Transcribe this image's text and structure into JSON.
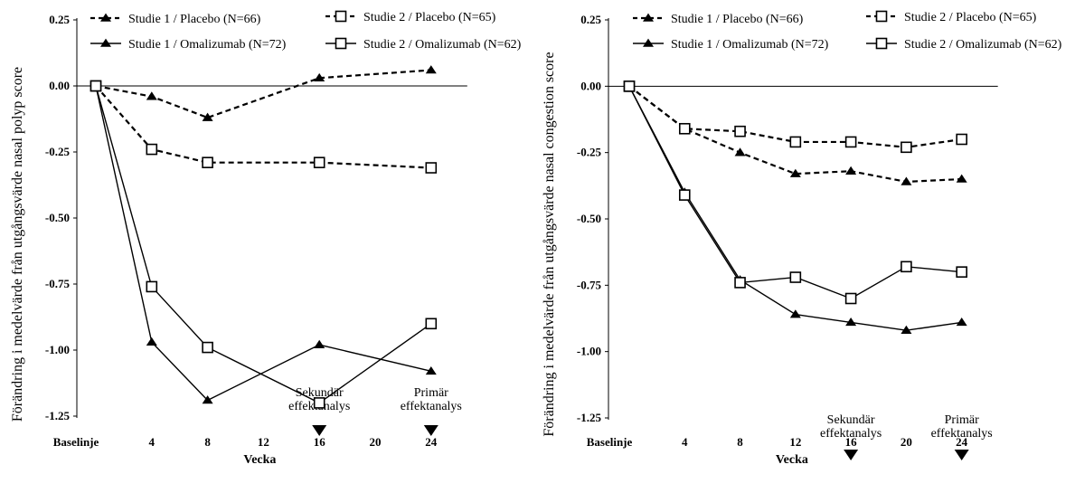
{
  "chart_data": [
    {
      "type": "line",
      "ylabel": "Förändring i medelvärde från utgångsvärde nasal polyp score",
      "xlabel": "Vecka",
      "x_tick_labels": [
        "Baselinje",
        "4",
        "8",
        "12",
        "16",
        "20",
        "24"
      ],
      "x_ticks": [
        0,
        4,
        8,
        12,
        16,
        20,
        24
      ],
      "y_ticks": [
        "0.25",
        "0.00",
        "-0.25",
        "-0.50",
        "-0.75",
        "-1.00",
        "-1.25"
      ],
      "ylim": [
        -1.25,
        0.25
      ],
      "grid": false,
      "legend_position": "top",
      "annotations": [
        {
          "x": 16,
          "lines": [
            "Sekundär",
            "effektanalys"
          ]
        },
        {
          "x": 24,
          "lines": [
            "Primär",
            "effektanalys"
          ]
        }
      ],
      "series": [
        {
          "name": "Studie 1 / Placebo (N=66)",
          "marker": "triangle",
          "style": "dashed",
          "x": [
            0,
            4,
            8,
            16,
            24
          ],
          "values": [
            0.0,
            -0.04,
            -0.12,
            0.03,
            0.06
          ]
        },
        {
          "name": "Studie 2 / Placebo (N=65)",
          "marker": "square",
          "style": "dashed",
          "x": [
            0,
            4,
            8,
            16,
            24
          ],
          "values": [
            0.0,
            -0.24,
            -0.29,
            -0.29,
            -0.31
          ]
        },
        {
          "name": "Studie 1 / Omalizumab (N=72)",
          "marker": "triangle",
          "style": "solid",
          "x": [
            0,
            4,
            8,
            16,
            24
          ],
          "values": [
            0.0,
            -0.97,
            -1.19,
            -0.98,
            -1.08
          ]
        },
        {
          "name": "Studie 2 / Omalizumab (N=62)",
          "marker": "square",
          "style": "solid",
          "x": [
            0,
            4,
            8,
            16,
            24
          ],
          "values": [
            0.0,
            -0.76,
            -0.99,
            -1.2,
            -0.9
          ]
        }
      ]
    },
    {
      "type": "line",
      "ylabel": "Förändring i medelvärde från utgångsvärde nasal congestion score",
      "xlabel": "Vecka",
      "x_tick_labels": [
        "Baselinje",
        "4",
        "8",
        "12",
        "16",
        "20",
        "24"
      ],
      "x_ticks": [
        0,
        4,
        8,
        12,
        16,
        20,
        24
      ],
      "y_ticks": [
        "0.25",
        "0.00",
        "-0.25",
        "-0.50",
        "-0.75",
        "-1.00",
        "-1.25"
      ],
      "ylim": [
        -1.25,
        0.25
      ],
      "grid": false,
      "legend_position": "top",
      "annotations": [
        {
          "x": 16,
          "lines": [
            "Sekundär",
            "effektanalys"
          ]
        },
        {
          "x": 24,
          "lines": [
            "Primär",
            "effektanalys"
          ]
        }
      ],
      "series": [
        {
          "name": "Studie 1 / Placebo (N=66)",
          "marker": "triangle",
          "style": "dashed",
          "x": [
            0,
            4,
            8,
            12,
            16,
            20,
            24
          ],
          "values": [
            0.0,
            -0.16,
            -0.25,
            -0.33,
            -0.32,
            -0.36,
            -0.35
          ]
        },
        {
          "name": "Studie 2 / Placebo (N=65)",
          "marker": "square",
          "style": "dashed",
          "x": [
            0,
            4,
            8,
            12,
            16,
            20,
            24
          ],
          "values": [
            0.0,
            -0.16,
            -0.17,
            -0.21,
            -0.21,
            -0.23,
            -0.2
          ]
        },
        {
          "name": "Studie 1 / Omalizumab (N=72)",
          "marker": "triangle",
          "style": "solid",
          "x": [
            0,
            4,
            8,
            12,
            16,
            20,
            24
          ],
          "values": [
            0.0,
            -0.4,
            -0.73,
            -0.86,
            -0.89,
            -0.92,
            -0.89
          ]
        },
        {
          "name": "Studie 2 / Omalizumab (N=62)",
          "marker": "square",
          "style": "solid",
          "x": [
            0,
            4,
            8,
            12,
            16,
            20,
            24
          ],
          "values": [
            0.0,
            -0.41,
            -0.74,
            -0.72,
            -0.8,
            -0.68,
            -0.7
          ]
        }
      ]
    }
  ]
}
